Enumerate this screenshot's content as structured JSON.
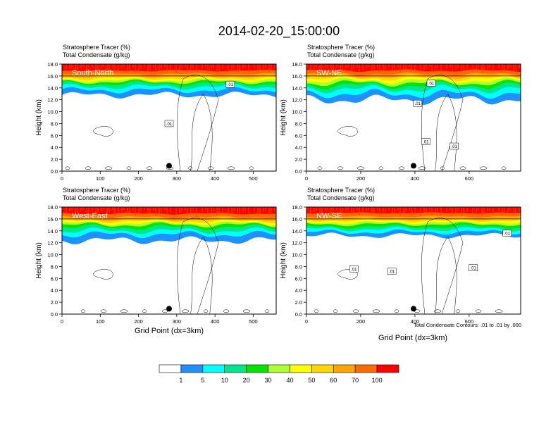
{
  "title": "2014-02-20_15:00:00",
  "panel_line1": "Stratosphere Tracer   (%)",
  "panel_line2": "Total Condensate   (g/kg)",
  "ylabel": "Height (km)",
  "xlabel": "Grid Point (dx=3km)",
  "contour_note": "Total Condensate Contours: .01 to .01 by .000",
  "contour_label": ".01",
  "chart_data": [
    {
      "type": "heatmap",
      "panel": "South-North",
      "xlim": [
        0,
        560
      ],
      "ylim": [
        0,
        18
      ],
      "xticks": [
        0,
        100,
        200,
        300,
        400,
        500
      ],
      "yticks": [
        "0.0",
        "2.0",
        "4.0",
        "6.0",
        "8.0",
        "10.0",
        "12.0",
        "14.0",
        "16.0",
        "18.0"
      ],
      "marker_x": 280,
      "contour_label_x": [
        280,
        440
      ],
      "contour_label_y": [
        8.0,
        14.6
      ]
    },
    {
      "type": "heatmap",
      "panel": "SW-NE",
      "xlim": [
        0,
        790
      ],
      "ylim": [
        0,
        18
      ],
      "xticks": [
        0,
        200,
        400,
        600
      ],
      "yticks": [
        "0.0",
        "2.0",
        "4.0",
        "6.0",
        "8.0",
        "10.0",
        "12.0",
        "14.0",
        "16.0",
        "18.0"
      ],
      "marker_x": 395,
      "contour_label_x": [
        410,
        460,
        440,
        545
      ],
      "contour_label_y": [
        11.4,
        14.8,
        5.0,
        4.2
      ]
    },
    {
      "type": "heatmap",
      "panel": "West-East",
      "xlim": [
        0,
        560
      ],
      "ylim": [
        0,
        18
      ],
      "xticks": [
        0,
        100,
        200,
        300,
        400,
        500
      ],
      "yticks": [
        "0.0",
        "2.0",
        "4.0",
        "6.0",
        "8.0",
        "10.0",
        "12.0",
        "14.0",
        "16.0",
        "18.0"
      ],
      "marker_x": 280,
      "contour_label_x": [],
      "contour_label_y": []
    },
    {
      "type": "heatmap",
      "panel": "NW-SE",
      "xlim": [
        0,
        790
      ],
      "ylim": [
        0,
        18
      ],
      "xticks": [
        0,
        200,
        400,
        600
      ],
      "yticks": [
        "0.0",
        "2.0",
        "4.0",
        "6.0",
        "8.0",
        "10.0",
        "12.0",
        "14.0",
        "16.0",
        "18.0"
      ],
      "marker_x": 395,
      "contour_label_x": [
        175,
        315,
        615,
        740
      ],
      "contour_label_y": [
        7.6,
        7.2,
        7.8,
        13.6
      ]
    }
  ],
  "colorbar": {
    "labels": [
      "1",
      "5",
      "10",
      "20",
      "30",
      "40",
      "50",
      "60",
      "70",
      "100"
    ],
    "colors": [
      "#ffffff",
      "#1e90ff",
      "#00ffff",
      "#00e68c",
      "#00e600",
      "#adff2f",
      "#ffff00",
      "#ffd700",
      "#ffa500",
      "#ff6a00",
      "#ff0000"
    ]
  }
}
